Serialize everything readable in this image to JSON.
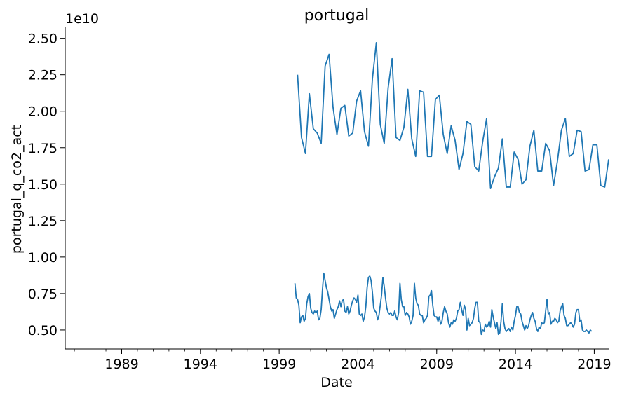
{
  "chart_data": {
    "type": "line",
    "title": "portugal",
    "xlabel": "Date",
    "ylabel": "portugal_q_co2_act",
    "y_offset_label": "1e10",
    "y_scale": 10000000000,
    "xlim": [
      "1985-06",
      "2019-12"
    ],
    "ylim": [
      0.37,
      2.58
    ],
    "x_tick_labels": [
      "1989",
      "1994",
      "1999",
      "2004",
      "2009",
      "2014",
      "2019"
    ],
    "y_tick_labels": [
      "0.50",
      "0.75",
      "1.00",
      "1.25",
      "1.50",
      "1.75",
      "2.00",
      "2.25",
      "2.50"
    ],
    "grid": false,
    "legend": "none",
    "line_color": "#1f77b4",
    "series": [
      {
        "resolution": "quarterly",
        "x": [
          "2000-03",
          "2000-06",
          "2000-09",
          "2000-12",
          "2001-03",
          "2001-06",
          "2001-09",
          "2001-12",
          "2002-03",
          "2002-06",
          "2002-09",
          "2002-12",
          "2003-03",
          "2003-06",
          "2003-09",
          "2003-12",
          "2004-03",
          "2004-06",
          "2004-09",
          "2004-12",
          "2005-03",
          "2005-06",
          "2005-09",
          "2005-12",
          "2006-03",
          "2006-06",
          "2006-09",
          "2006-12",
          "2007-03",
          "2007-06",
          "2007-09",
          "2007-12",
          "2008-03",
          "2008-06",
          "2008-09",
          "2008-12",
          "2009-03",
          "2009-06",
          "2009-09",
          "2009-12",
          "2010-03",
          "2010-06",
          "2010-09",
          "2010-12",
          "2011-03",
          "2011-06",
          "2011-09",
          "2011-12",
          "2012-03",
          "2012-06",
          "2012-09",
          "2012-12",
          "2013-03",
          "2013-06",
          "2013-09",
          "2013-12",
          "2014-03",
          "2014-06",
          "2014-09",
          "2014-12",
          "2015-03",
          "2015-06",
          "2015-09",
          "2015-12",
          "2016-03",
          "2016-06",
          "2016-09",
          "2016-12",
          "2017-03",
          "2017-06",
          "2017-09",
          "2017-12",
          "2018-03",
          "2018-06",
          "2018-09",
          "2018-12",
          "2019-03",
          "2019-06",
          "2019-09",
          "2019-12"
        ],
        "values": [
          2.25,
          1.82,
          1.71,
          2.12,
          1.88,
          1.85,
          1.78,
          2.31,
          2.39,
          2.03,
          1.84,
          2.02,
          2.04,
          1.83,
          1.85,
          2.07,
          2.14,
          1.86,
          1.76,
          2.22,
          2.47,
          1.91,
          1.78,
          2.16,
          2.36,
          1.82,
          1.8,
          1.89,
          2.15,
          1.81,
          1.69,
          2.14,
          2.13,
          1.69,
          1.69,
          2.08,
          2.11,
          1.84,
          1.71,
          1.9,
          1.8,
          1.6,
          1.71,
          1.93,
          1.91,
          1.62,
          1.59,
          1.79,
          1.95,
          1.47,
          1.55,
          1.61,
          1.81,
          1.48,
          1.48,
          1.72,
          1.67,
          1.5,
          1.53,
          1.76,
          1.87,
          1.59,
          1.59,
          1.78,
          1.73,
          1.49,
          1.66,
          1.87,
          1.95,
          1.69,
          1.71,
          1.87,
          1.86,
          1.59,
          1.6,
          1.77,
          1.77,
          1.49,
          1.48,
          1.67
        ]
      },
      {
        "resolution": "monthly",
        "x_start": "2000-01",
        "values": [
          0.82,
          0.72,
          0.71,
          0.67,
          0.55,
          0.59,
          0.6,
          0.56,
          0.58,
          0.68,
          0.73,
          0.75,
          0.65,
          0.62,
          0.61,
          0.63,
          0.62,
          0.63,
          0.57,
          0.58,
          0.64,
          0.78,
          0.89,
          0.84,
          0.79,
          0.76,
          0.71,
          0.66,
          0.63,
          0.64,
          0.58,
          0.61,
          0.64,
          0.66,
          0.7,
          0.66,
          0.7,
          0.71,
          0.63,
          0.62,
          0.66,
          0.61,
          0.63,
          0.67,
          0.7,
          0.72,
          0.71,
          0.69,
          0.74,
          0.61,
          0.6,
          0.61,
          0.56,
          0.59,
          0.66,
          0.79,
          0.86,
          0.87,
          0.84,
          0.76,
          0.65,
          0.63,
          0.62,
          0.57,
          0.6,
          0.67,
          0.74,
          0.86,
          0.8,
          0.72,
          0.65,
          0.62,
          0.61,
          0.62,
          0.6,
          0.6,
          0.63,
          0.59,
          0.57,
          0.62,
          0.82,
          0.71,
          0.66,
          0.66,
          0.6,
          0.62,
          0.61,
          0.59,
          0.54,
          0.56,
          0.6,
          0.82,
          0.72,
          0.68,
          0.67,
          0.61,
          0.6,
          0.6,
          0.55,
          0.57,
          0.58,
          0.6,
          0.73,
          0.74,
          0.77,
          0.67,
          0.6,
          0.59,
          0.59,
          0.56,
          0.59,
          0.54,
          0.56,
          0.62,
          0.66,
          0.63,
          0.61,
          0.55,
          0.52,
          0.55,
          0.54,
          0.57,
          0.56,
          0.58,
          0.63,
          0.64,
          0.69,
          0.64,
          0.6,
          0.67,
          0.64,
          0.5,
          0.58,
          0.53,
          0.54,
          0.55,
          0.58,
          0.65,
          0.69,
          0.69,
          0.56,
          0.55,
          0.47,
          0.5,
          0.49,
          0.54,
          0.52,
          0.53,
          0.56,
          0.52,
          0.64,
          0.59,
          0.55,
          0.51,
          0.55,
          0.47,
          0.48,
          0.56,
          0.68,
          0.56,
          0.51,
          0.49,
          0.5,
          0.51,
          0.49,
          0.52,
          0.5,
          0.56,
          0.6,
          0.66,
          0.66,
          0.62,
          0.61,
          0.56,
          0.53,
          0.5,
          0.53,
          0.51,
          0.53,
          0.57,
          0.6,
          0.62,
          0.58,
          0.56,
          0.51,
          0.49,
          0.52,
          0.51,
          0.55,
          0.54,
          0.55,
          0.63,
          0.71,
          0.61,
          0.62,
          0.54,
          0.56,
          0.56,
          0.58,
          0.57,
          0.55,
          0.56,
          0.63,
          0.66,
          0.68,
          0.6,
          0.58,
          0.53,
          0.53,
          0.54,
          0.55,
          0.54,
          0.52,
          0.54,
          0.62,
          0.64,
          0.64,
          0.56,
          0.57,
          0.5,
          0.49,
          0.49,
          0.5,
          0.49,
          0.48,
          0.5,
          0.49
        ]
      }
    ]
  }
}
